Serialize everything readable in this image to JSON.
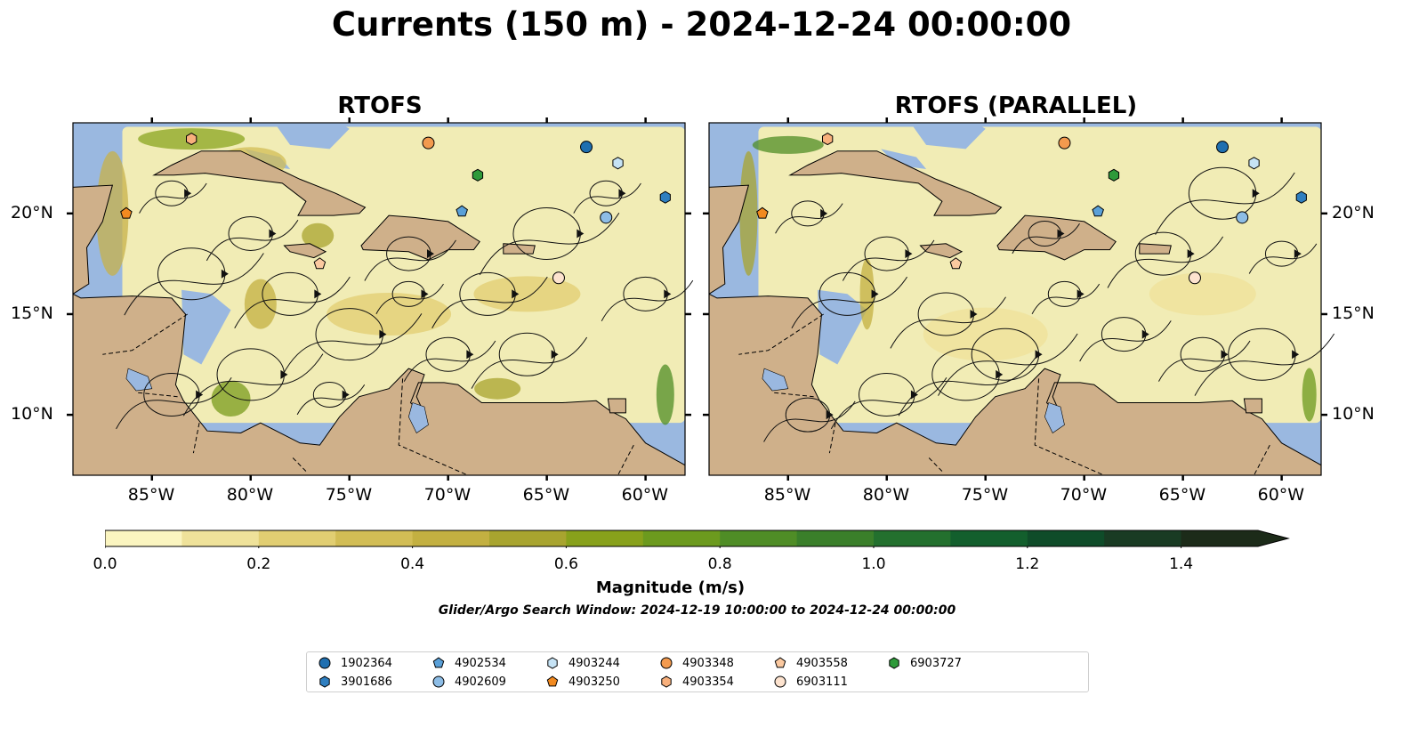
{
  "title": "Currents (150 m) - 2024-12-24 00:00:00",
  "panels": [
    {
      "id": "rtofs",
      "title": "RTOFS"
    },
    {
      "id": "rtofs-parallel",
      "title": "RTOFS (PARALLEL)"
    }
  ],
  "map_extent": {
    "lon_min": -89,
    "lon_max": -58,
    "lat_min": 7,
    "lat_max": 24.5
  },
  "axes": {
    "lon_ticks": [
      {
        "value": -85,
        "label": "85°W"
      },
      {
        "value": -80,
        "label": "80°W"
      },
      {
        "value": -75,
        "label": "75°W"
      },
      {
        "value": -70,
        "label": "70°W"
      },
      {
        "value": -65,
        "label": "65°W"
      },
      {
        "value": -60,
        "label": "60°W"
      }
    ],
    "lat_ticks": [
      {
        "value": 20,
        "label": "20°N"
      },
      {
        "value": 15,
        "label": "15°N"
      },
      {
        "value": 10,
        "label": "10°N"
      }
    ]
  },
  "colorbar": {
    "title": "Magnitude (m/s)",
    "min": 0.0,
    "max": 1.5,
    "extend": "max",
    "colors": [
      "#fbf5c0",
      "#efe29a",
      "#e1ce72",
      "#d2bd55",
      "#c3b041",
      "#a8a42f",
      "#88a11b",
      "#6c9a1e",
      "#4f8d26",
      "#3a7f2a",
      "#23702e",
      "#135f2d",
      "#0f4c29",
      "#193b23",
      "#1c2b19"
    ],
    "ticks": [
      {
        "value": 0.0,
        "label": "0.0"
      },
      {
        "value": 0.2,
        "label": "0.2"
      },
      {
        "value": 0.4,
        "label": "0.4"
      },
      {
        "value": 0.6,
        "label": "0.6"
      },
      {
        "value": 0.8,
        "label": "0.8"
      },
      {
        "value": 1.0,
        "label": "1.0"
      },
      {
        "value": 1.2,
        "label": "1.2"
      },
      {
        "value": 1.4,
        "label": "1.4"
      }
    ]
  },
  "search_window": "Glider/Argo Search Window: 2024-12-19 10:00:00 to 2024-12-24 00:00:00",
  "colors": {
    "ocean": "#9ab8e0",
    "land": "#cfb08a",
    "field": "#f6eeb2",
    "border": "#000000"
  },
  "platforms": [
    {
      "id": "1902364",
      "marker": "circle",
      "color": "#1f6fb0",
      "lon": -63,
      "lat": 23.3,
      "lon_par": -63,
      "lat_par": 23.3
    },
    {
      "id": "3901686",
      "marker": "hexagon",
      "color": "#2f7fc0",
      "lon": -59,
      "lat": 20.8,
      "lon_par": -59,
      "lat_par": 20.8
    },
    {
      "id": "4902534",
      "marker": "pentagon",
      "color": "#5aa0d8",
      "lon": -69.3,
      "lat": 20.1,
      "lon_par": -69.3,
      "lat_par": 20.1
    },
    {
      "id": "4902609",
      "marker": "circle",
      "color": "#8dbde6",
      "lon": -62,
      "lat": 19.8,
      "lon_par": -62,
      "lat_par": 19.8
    },
    {
      "id": "4903244",
      "marker": "hexagon",
      "color": "#c6e3f5",
      "lon": -61.4,
      "lat": 22.5,
      "lon_par": -61.4,
      "lat_par": 22.5
    },
    {
      "id": "4903250",
      "marker": "pentagon",
      "color": "#f28a20",
      "lon": -86.3,
      "lat": 20.0,
      "lon_par": -86.3,
      "lat_par": 20.0
    },
    {
      "id": "4903348",
      "marker": "circle",
      "color": "#f39a4e",
      "lon": -71,
      "lat": 23.5,
      "lon_par": -71,
      "lat_par": 23.5
    },
    {
      "id": "4903354",
      "marker": "hexagon",
      "color": "#f8b07c",
      "lon": -83,
      "lat": 23.7,
      "lon_par": -83,
      "lat_par": 23.7
    },
    {
      "id": "4903558",
      "marker": "pentagon",
      "color": "#fbc9a0",
      "lon": -76.5,
      "lat": 17.5,
      "lon_par": -76.5,
      "lat_par": 17.5
    },
    {
      "id": "6903111",
      "marker": "circle",
      "color": "#fde3cf",
      "lon": -64.4,
      "lat": 16.8,
      "lon_par": -64.4,
      "lat_par": 16.8
    },
    {
      "id": "6903727",
      "marker": "hexagon",
      "color": "#2e9a3a",
      "lon": -68.5,
      "lat": 21.9,
      "lon_par": -68.5,
      "lat_par": 21.9
    }
  ]
}
